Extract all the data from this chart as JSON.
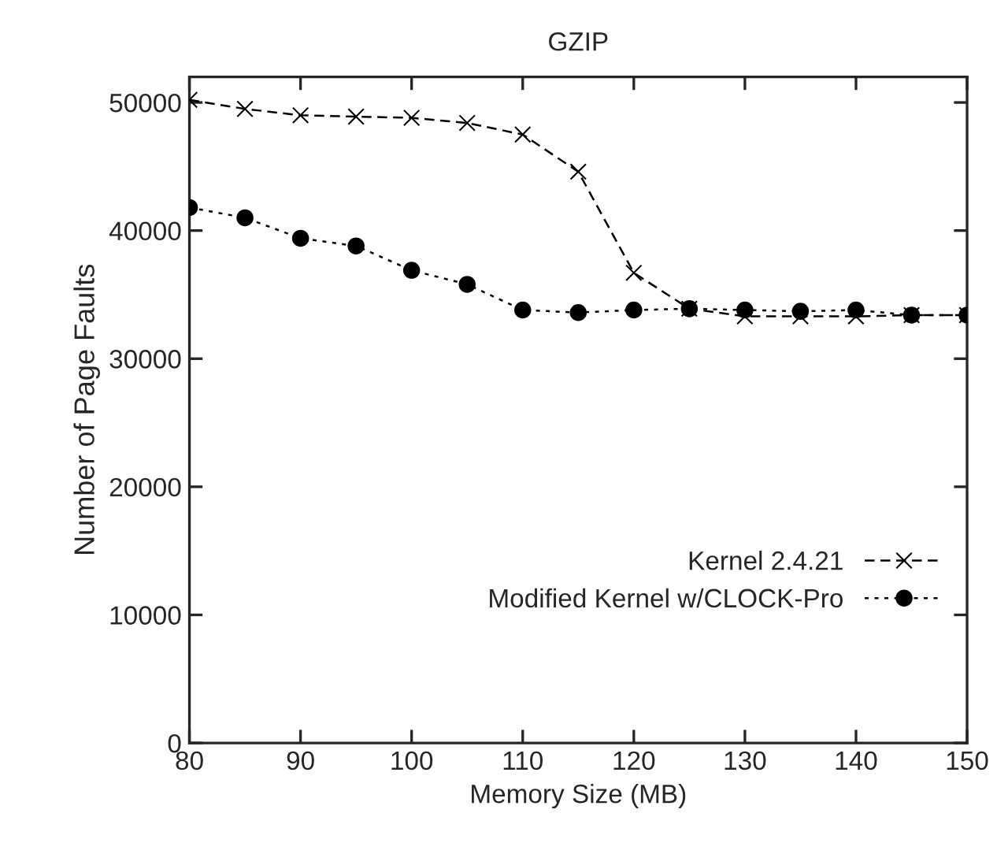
{
  "chart_data": {
    "type": "line",
    "title": "GZIP",
    "xlabel": "Memory Size (MB)",
    "ylabel": "Number of Page Faults",
    "x": [
      80,
      85,
      90,
      95,
      100,
      105,
      110,
      115,
      120,
      125,
      130,
      135,
      140,
      145,
      150
    ],
    "series": [
      {
        "name": "Kernel 2.4.21",
        "color": "#000000",
        "marker": "cross",
        "line_style": "dashed",
        "values": [
          50200,
          49500,
          49000,
          48900,
          48800,
          48400,
          47500,
          44600,
          36700,
          33900,
          33300,
          33300,
          33300,
          33400,
          33400
        ]
      },
      {
        "name": "Modified Kernel w/CLOCK-Pro",
        "color": "#000000",
        "marker": "circle",
        "line_style": "dotted",
        "values": [
          41800,
          41000,
          39400,
          38800,
          36900,
          35800,
          33800,
          33600,
          33800,
          33900,
          33800,
          33700,
          33800,
          33400,
          33400
        ]
      }
    ],
    "xlim": [
      80,
      150
    ],
    "xticks": [
      80,
      90,
      100,
      110,
      120,
      130,
      140,
      150
    ],
    "ylim": [
      0,
      52000
    ],
    "yticks": [
      0,
      10000,
      20000,
      30000,
      40000,
      50000
    ],
    "grid": false,
    "legend": "lower right"
  }
}
